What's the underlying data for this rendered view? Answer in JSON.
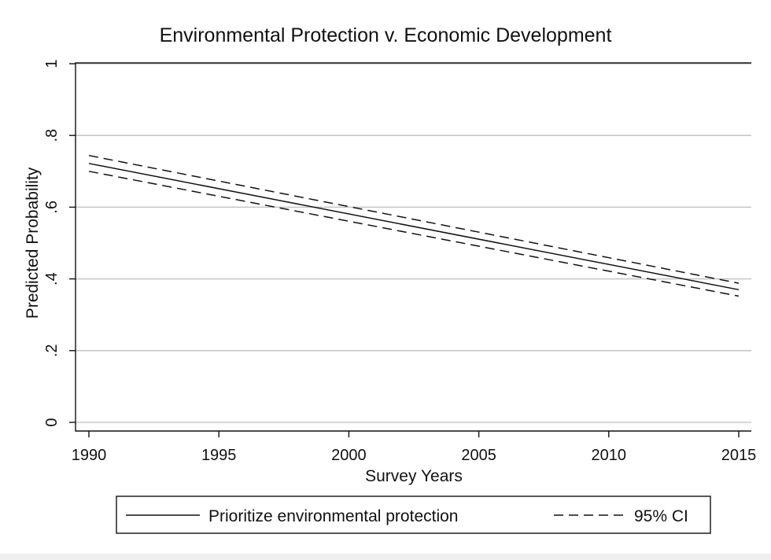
{
  "chart_data": {
    "type": "line",
    "title": "Environmental Protection v. Economic Development",
    "xlabel": "Survey Years",
    "ylabel": "Predicted Probability",
    "xlim": [
      1990,
      2015
    ],
    "ylim": [
      0,
      1
    ],
    "x_ticks": [
      1990,
      1995,
      2000,
      2005,
      2010,
      2015
    ],
    "x_tick_labels": [
      "1990",
      "1995",
      "2000",
      "2005",
      "2010",
      "2015"
    ],
    "y_ticks": [
      0,
      0.2,
      0.4,
      0.6,
      0.8,
      1
    ],
    "y_tick_labels": [
      "0",
      ".2",
      ".4",
      ".6",
      ".8",
      "1"
    ],
    "grid": true,
    "legend_position": "bottom",
    "series": [
      {
        "name": "Prioritize environmental protection",
        "style": "solid",
        "x": [
          1990,
          2015
        ],
        "y": [
          0.722,
          0.37
        ]
      },
      {
        "name": "95% CI",
        "style": "dashed",
        "x": [
          1990,
          2015
        ],
        "y": [
          0.744,
          0.388
        ]
      },
      {
        "style": "dashed",
        "x": [
          1990,
          2015
        ],
        "y": [
          0.7,
          0.352
        ]
      }
    ],
    "legend": [
      {
        "label": "Prioritize environmental protection",
        "style": "solid"
      },
      {
        "label": "95% CI",
        "style": "dashed"
      }
    ]
  }
}
